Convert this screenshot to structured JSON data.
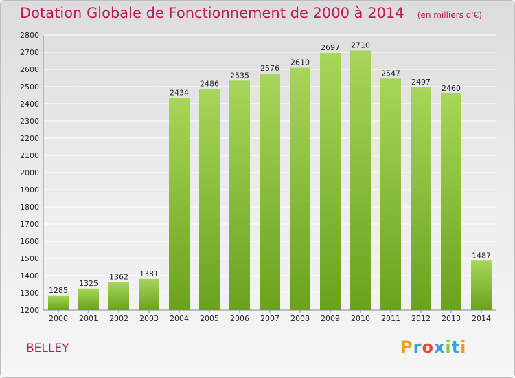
{
  "header": {
    "title": "Dotation Globale de Fonctionnement de 2000 à 2014",
    "subtitle": "(en milliers d'€)"
  },
  "footer": {
    "commune": "BELLEY",
    "logo_text": "Proxiti"
  },
  "colors": {
    "title": "#c2185b",
    "bar_top": "#a7d65a",
    "bar_bottom": "#6aa21d",
    "grid": "#ffffff",
    "axis_text": "#222222"
  },
  "chart_data": {
    "type": "bar",
    "title": "Dotation Globale de Fonctionnement de 2000 à 2014",
    "subtitle": "(en milliers d'€)",
    "categories": [
      "2000",
      "2001",
      "2002",
      "2003",
      "2004",
      "2005",
      "2006",
      "2007",
      "2008",
      "2009",
      "2010",
      "2011",
      "2012",
      "2013",
      "2014"
    ],
    "values": [
      1285,
      1325,
      1362,
      1381,
      2434,
      2486,
      2535,
      2576,
      2610,
      2697,
      2710,
      2547,
      2497,
      2460,
      1487
    ],
    "ylim": [
      1200,
      2800
    ],
    "yticks": [
      1200,
      1300,
      1400,
      1500,
      1600,
      1700,
      1800,
      1900,
      2000,
      2100,
      2200,
      2300,
      2400,
      2500,
      2600,
      2700,
      2800
    ],
    "xlabel": "",
    "ylabel": "",
    "grid": true,
    "data_labels": true
  }
}
